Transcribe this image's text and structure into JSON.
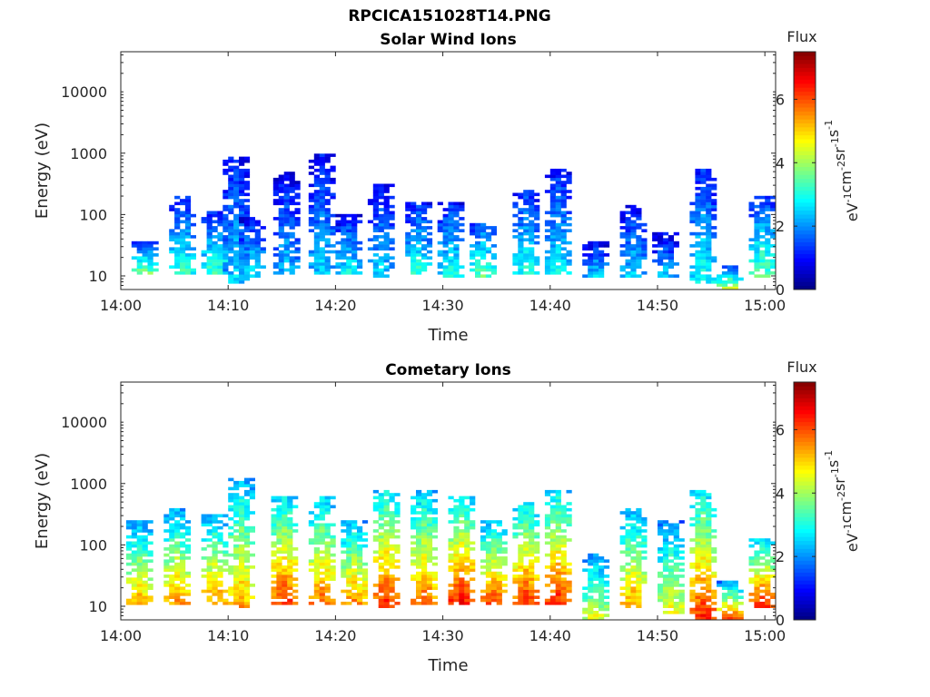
{
  "figure_title": "RPCICA151028T14.PNG",
  "chart_data": [
    {
      "type": "heatmap",
      "title": "Solar Wind Ions",
      "xlabel": "Time",
      "ylabel": "Energy (eV)",
      "x_ticks": [
        "14:00",
        "14:10",
        "14:20",
        "14:30",
        "14:40",
        "14:50",
        "15:00"
      ],
      "y_ticks": [
        "10",
        "100",
        "1000",
        "10000"
      ],
      "y_scale": "log",
      "xlim": [
        "14:00",
        "15:01"
      ],
      "ylim": [
        6,
        45000
      ],
      "colorbar": {
        "label": "Flux",
        "unit_label": "eV-1cm-2sr-1s-1",
        "ticks": [
          "0",
          "2",
          "4",
          "6"
        ],
        "range": [
          0,
          7.5
        ],
        "colormap": "jet"
      },
      "bursts": [
        {
          "t": 2.0,
          "lo": 12,
          "hi": 30,
          "v": 3.6
        },
        {
          "t": 5.5,
          "lo": 12,
          "hi": 160,
          "v": 3.2
        },
        {
          "t": 8.5,
          "lo": 12,
          "hi": 90,
          "v": 3.3
        },
        {
          "t": 10.5,
          "lo": 8,
          "hi": 700,
          "v": 2.6
        },
        {
          "t": 12.0,
          "lo": 10,
          "hi": 70,
          "v": 2.8
        },
        {
          "t": 15.2,
          "lo": 12,
          "hi": 400,
          "v": 2.4
        },
        {
          "t": 18.5,
          "lo": 12,
          "hi": 800,
          "v": 2.5
        },
        {
          "t": 21.0,
          "lo": 12,
          "hi": 80,
          "v": 2.8
        },
        {
          "t": 24.0,
          "lo": 10,
          "hi": 250,
          "v": 2.6
        },
        {
          "t": 27.5,
          "lo": 12,
          "hi": 120,
          "v": 3.1
        },
        {
          "t": 30.5,
          "lo": 10,
          "hi": 120,
          "v": 3.0
        },
        {
          "t": 33.5,
          "lo": 10,
          "hi": 60,
          "v": 3.6
        },
        {
          "t": 37.5,
          "lo": 12,
          "hi": 200,
          "v": 3.0
        },
        {
          "t": 40.5,
          "lo": 12,
          "hi": 450,
          "v": 2.8
        },
        {
          "t": 44.0,
          "lo": 10,
          "hi": 30,
          "v": 2.5
        },
        {
          "t": 47.5,
          "lo": 10,
          "hi": 110,
          "v": 2.6
        },
        {
          "t": 50.5,
          "lo": 10,
          "hi": 40,
          "v": 2.4
        },
        {
          "t": 54.0,
          "lo": 8,
          "hi": 420,
          "v": 3.0
        },
        {
          "t": 56.5,
          "lo": 7,
          "hi": 12,
          "v": 3.8
        },
        {
          "t": 59.5,
          "lo": 10,
          "hi": 150,
          "v": 3.6
        }
      ]
    },
    {
      "type": "heatmap",
      "title": "Cometary Ions",
      "xlabel": "Time",
      "ylabel": "Energy (eV)",
      "x_ticks": [
        "14:00",
        "14:10",
        "14:20",
        "14:30",
        "14:40",
        "14:50",
        "15:00"
      ],
      "y_ticks": [
        "10",
        "100",
        "1000",
        "10000"
      ],
      "y_scale": "log",
      "xlim": [
        "14:00",
        "15:01"
      ],
      "ylim": [
        6,
        45000
      ],
      "colorbar": {
        "label": "Flux",
        "unit_label": "eV-1cm-2sr-1s-1",
        "ticks": [
          "0",
          "2",
          "4",
          "6"
        ],
        "range": [
          0,
          7.5
        ],
        "colormap": "jet"
      },
      "bursts": [
        {
          "t": 1.5,
          "lo": 12,
          "hi": 200,
          "v": 5.3
        },
        {
          "t": 5.0,
          "lo": 12,
          "hi": 300,
          "v": 5.5
        },
        {
          "t": 8.5,
          "lo": 12,
          "hi": 250,
          "v": 5.6
        },
        {
          "t": 11.0,
          "lo": 10,
          "hi": 1000,
          "v": 5.4
        },
        {
          "t": 15.0,
          "lo": 12,
          "hi": 500,
          "v": 6.2
        },
        {
          "t": 18.5,
          "lo": 12,
          "hi": 500,
          "v": 5.8
        },
        {
          "t": 21.5,
          "lo": 12,
          "hi": 200,
          "v": 5.6
        },
        {
          "t": 24.5,
          "lo": 10,
          "hi": 600,
          "v": 6.4
        },
        {
          "t": 28.0,
          "lo": 12,
          "hi": 600,
          "v": 5.9
        },
        {
          "t": 31.5,
          "lo": 12,
          "hi": 500,
          "v": 6.5
        },
        {
          "t": 34.5,
          "lo": 12,
          "hi": 200,
          "v": 6.0
        },
        {
          "t": 37.5,
          "lo": 12,
          "hi": 400,
          "v": 6.2
        },
        {
          "t": 40.5,
          "lo": 12,
          "hi": 600,
          "v": 6.3
        },
        {
          "t": 44.0,
          "lo": 6,
          "hi": 60,
          "v": 4.6
        },
        {
          "t": 47.5,
          "lo": 10,
          "hi": 300,
          "v": 5.5
        },
        {
          "t": 51.0,
          "lo": 8,
          "hi": 200,
          "v": 4.8
        },
        {
          "t": 54.0,
          "lo": 7,
          "hi": 600,
          "v": 6.3
        },
        {
          "t": 56.5,
          "lo": 7,
          "hi": 20,
          "v": 5.8
        },
        {
          "t": 59.5,
          "lo": 10,
          "hi": 100,
          "v": 6.4
        }
      ]
    }
  ]
}
